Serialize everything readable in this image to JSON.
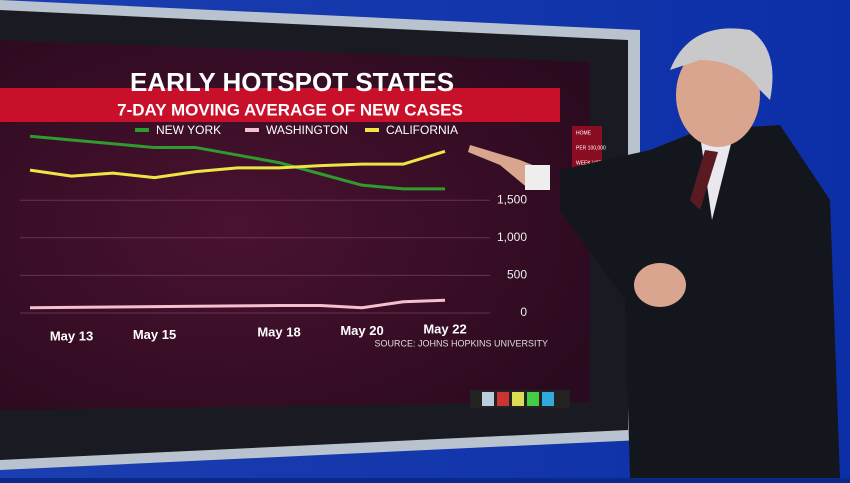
{
  "chart_data": {
    "type": "line",
    "title": "EARLY HOTSPOT STATES",
    "subtitle": "7-DAY MOVING AVERAGE OF NEW CASES",
    "source": "SOURCE: JOHNS HOPKINS UNIVERSITY",
    "categories": [
      null,
      "May 13",
      null,
      "May 15",
      null,
      null,
      "May 18",
      null,
      "May 20",
      null,
      "May 22"
    ],
    "series": [
      {
        "name": "NEW YORK",
        "color": "#2f9a2f",
        "values": [
          2350,
          2300,
          2250,
          2200,
          2200,
          2100,
          2000,
          1850,
          1700,
          1650,
          1650
        ]
      },
      {
        "name": "WASHINGTON",
        "color": "#f6bfd0",
        "values": [
          70,
          75,
          80,
          85,
          90,
          95,
          100,
          100,
          70,
          150,
          170
        ]
      },
      {
        "name": "CALIFORNIA",
        "color": "#ece545",
        "values": [
          1900,
          1820,
          1860,
          1800,
          1880,
          1930,
          1930,
          1960,
          1980,
          1980,
          2150
        ]
      }
    ],
    "ylim": [
      0,
      2500
    ],
    "yticks": [
      0,
      500,
      {
        "value": 1000,
        "label": "1,000"
      },
      {
        "value": 1500,
        "label": "1,500"
      }
    ],
    "grid": true
  },
  "ui": {
    "buttons": [
      "HOME",
      "PER 100,000",
      "WEEK VIEW"
    ]
  }
}
